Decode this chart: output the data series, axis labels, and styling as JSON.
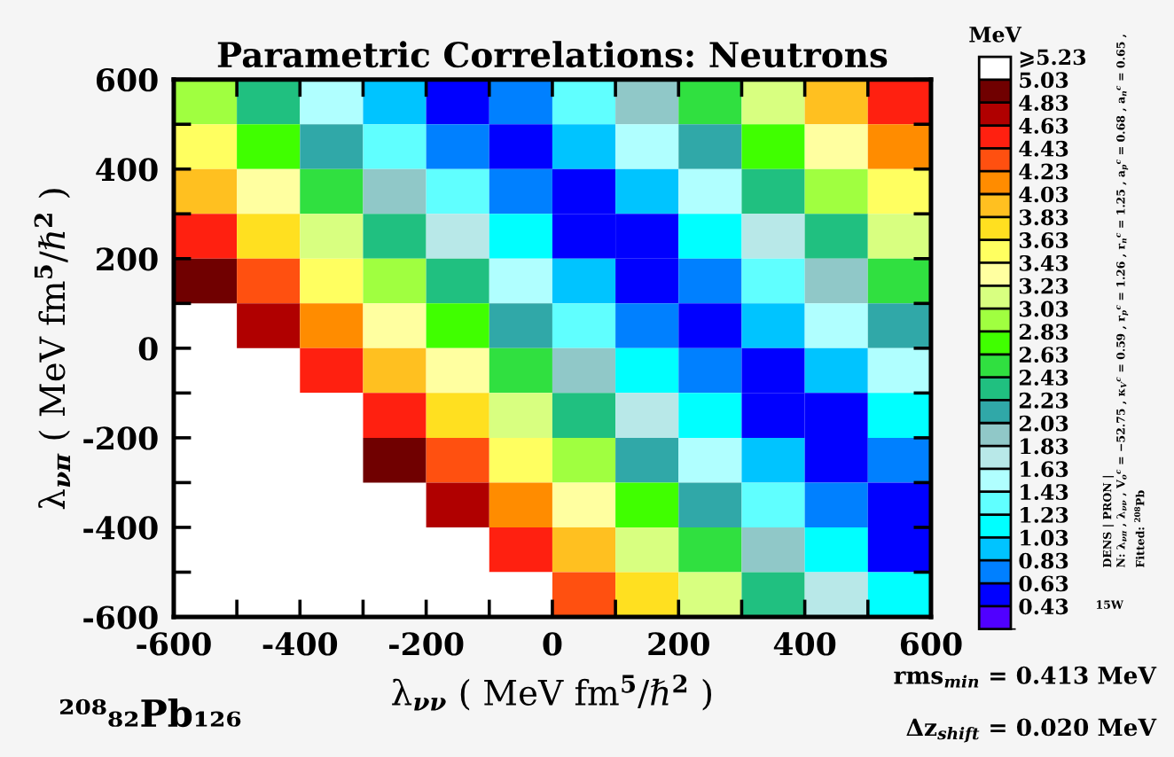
{
  "chart_data": {
    "type": "heatmap",
    "title": "Parametric Correlations: Neutrons",
    "xlabel": "λ$_{νν}$ ( MeV fm$^{5}$/ℏ$^{2}$ )",
    "ylabel": "λ$_{νπ}$ ( MeV fm$^{5}$/ℏ$^{2}$ )",
    "clabel": "MeV",
    "annotations": [
      "²⁰⁸₈₂Pb₁₂₆",
      "rms$_{min}$ = 0.413 MeV",
      "Δz$_{shift}$ = 0.020 MeV",
      "DENS | PRON |",
      "N: λ$_{νπ}$ , λ$_{νν}$ , V$_{o}$$^{c}$ = −52.75 , κ$_{V}$$^{c}$ = 0.59 , r$_{p}$$^{c}$ = 1.26 , r$_{n}$$^{c}$ = 1.25 , a$_{p}$$^{c}$ = 0.68 , a$_{n}$$^{c}$ = 0.65 ,",
      "Fitted: $^{208}$Pb",
      "15W"
    ],
    "cells": [
      [
        2.93,
        2.26,
        1.59,
        0.95,
        0.47,
        0.69,
        1.27,
        1.9,
        2.55,
        3.2,
        3.86,
        4.51
      ],
      [
        3.44,
        2.76,
        2.08,
        1.42,
        0.79,
        0.45,
        0.83,
        1.43,
        2.07,
        2.72,
        3.37,
        4.03
      ],
      [
        3.95,
        3.26,
        2.58,
        1.91,
        1.25,
        0.66,
        0.49,
        0.98,
        1.59,
        2.23,
        2.88,
        3.54
      ],
      [
        4.45,
        3.77,
        3.08,
        2.41,
        1.73,
        1.08,
        0.54,
        0.59,
        1.13,
        1.76,
        2.4,
        3.05
      ],
      [
        4.96,
        4.27,
        3.59,
        2.91,
        2.23,
        1.56,
        0.92,
        0.47,
        0.71,
        1.29,
        1.92,
        2.57
      ],
      [
        null,
        4.78,
        4.1,
        3.41,
        2.73,
        2.06,
        1.39,
        0.77,
        0.45,
        0.85,
        1.45,
        2.09
      ],
      [
        null,
        null,
        4.6,
        3.92,
        3.24,
        2.56,
        1.88,
        1.22,
        0.64,
        0.5,
        1.0,
        1.61
      ],
      [
        null,
        null,
        5.11,
        4.43,
        3.74,
        3.06,
        2.38,
        1.71,
        1.06,
        0.53,
        0.6,
        1.15
      ],
      [
        null,
        null,
        null,
        4.93,
        4.25,
        3.56,
        2.88,
        2.21,
        1.54,
        0.9,
        0.46,
        0.73
      ],
      [
        null,
        null,
        null,
        null,
        4.76,
        4.07,
        3.39,
        2.71,
        2.03,
        1.37,
        0.75,
        0.45
      ],
      [
        null,
        null,
        null,
        null,
        null,
        4.58,
        3.9,
        3.21,
        2.53,
        1.86,
        1.2,
        0.62
      ],
      [
        null,
        null,
        null,
        null,
        null,
        5.09,
        4.4,
        3.72,
        3.03,
        2.36,
        1.69,
        1.04
      ]
    ],
    "colors": [
      "#5000ff",
      "#0000ff",
      "#0080ff",
      "#00c4ff",
      "#00ffff",
      "#60ffff",
      "#b0ffff",
      "#b8e8e8",
      "#90c8c8",
      "#30a8a8",
      "#20c080",
      "#30e040",
      "#40ff00",
      "#a0ff40",
      "#d8ff80",
      "#ffffa0",
      "#ffff60",
      "#ffe020",
      "#ffc020",
      "#ff8c00",
      "#ff5010",
      "#ff2010",
      "#b00000",
      "#700000",
      "#ffffff"
    ],
    "clim": [
      0.23,
      5.23
    ],
    "cticks": [
      0.43,
      0.63,
      0.83,
      1.03,
      1.23,
      1.43,
      1.63,
      1.83,
      2.03,
      2.23,
      2.43,
      2.63,
      2.83,
      3.03,
      3.23,
      3.43,
      3.63,
      3.83,
      4.03,
      4.23,
      4.43,
      4.63,
      4.83,
      5.03,
      {
        "value": 5.23,
        "label": "⩾5.23"
      }
    ],
    "xlim": [
      -600,
      600
    ],
    "ylim": [
      -600,
      600
    ],
    "xticks": [
      -600,
      {
        "value": -500,
        "label": null
      },
      -400,
      {
        "value": -300,
        "label": null
      },
      -200,
      {
        "value": -100,
        "label": null
      },
      0,
      {
        "value": 100,
        "label": null
      },
      200,
      {
        "value": 300,
        "label": null
      },
      400,
      {
        "value": 500,
        "label": null
      },
      600
    ],
    "yticks": [
      -600,
      {
        "value": -500,
        "label": null
      },
      -400,
      {
        "value": -300,
        "label": null
      },
      -200,
      {
        "value": -100,
        "label": null
      },
      0,
      {
        "value": 100,
        "label": null
      },
      200,
      {
        "value": 300,
        "label": null
      },
      400,
      {
        "value": 500,
        "label": null
      },
      600
    ]
  }
}
